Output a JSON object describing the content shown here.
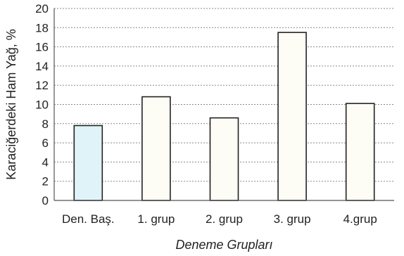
{
  "chart_data": {
    "type": "bar",
    "categories": [
      "Den. Baş.",
      "1. grup",
      "2. grup",
      "3. grup",
      "4.grup"
    ],
    "values": [
      7.8,
      10.8,
      8.6,
      17.5,
      10.1
    ],
    "bar_colors": [
      "#dff3f8",
      "#fdfdf6",
      "#fdfdf6",
      "#fdfdf6",
      "#fdfdf6"
    ],
    "ylim": [
      0,
      20
    ],
    "yticks": [
      0,
      2,
      4,
      6,
      8,
      10,
      12,
      14,
      16,
      18,
      20
    ],
    "xlabel": "Deneme Grupları",
    "ylabel": "Karaciğerdeki Ham Yağ, %",
    "grid": true
  }
}
